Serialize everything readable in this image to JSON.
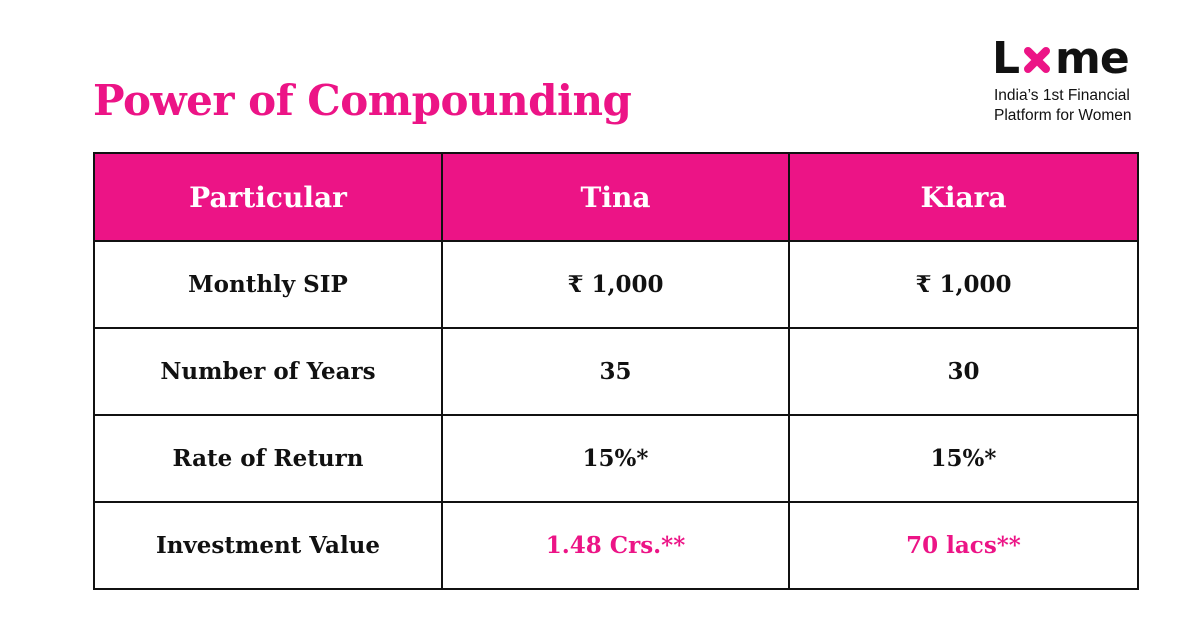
{
  "title": "Power of Compounding",
  "brand": {
    "logo_left": "L",
    "logo_icon": "x-mark-icon",
    "logo_right": "me",
    "tagline_line1": "India’s 1st Financial",
    "tagline_line2": "Platform for Women"
  },
  "table": {
    "headers": [
      "Particular",
      "Tina",
      "Kiara"
    ],
    "rows": [
      [
        "Monthly SIP",
        "₹ 1,000",
        "₹ 1,000"
      ],
      [
        "Number of Years",
        "35",
        "30"
      ],
      [
        "Rate of Return",
        "15%*",
        "15%*"
      ],
      [
        "Investment Value",
        "1.48 Crs.**",
        "70 lacs**"
      ]
    ]
  },
  "colors": {
    "accent": "#ec1486",
    "text": "#111111",
    "background": "#ffffff"
  }
}
